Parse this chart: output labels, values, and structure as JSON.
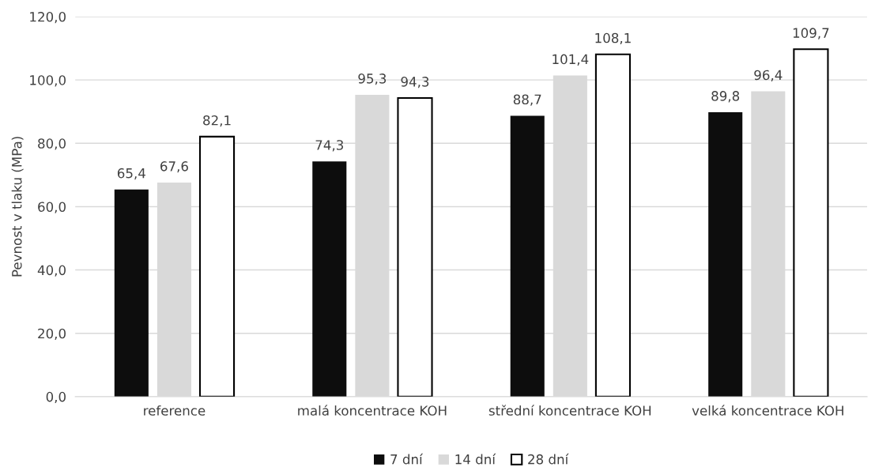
{
  "chart_data": {
    "type": "bar",
    "ylabel": "Pevnost v tlaku (MPa)",
    "categories": [
      "reference",
      "malá koncentrace KOH",
      "střední koncentrace KOH",
      "velká koncentrace KOH"
    ],
    "series": [
      {
        "name": "7 dní",
        "color": "#0d0d0d",
        "values": [
          65.4,
          74.3,
          88.7,
          89.8
        ],
        "value_labels": [
          "65,4",
          "74,3",
          "88,7",
          "89,8"
        ]
      },
      {
        "name": "14 dní",
        "color": "#d9d9d9",
        "values": [
          67.6,
          95.3,
          101.4,
          96.4
        ],
        "value_labels": [
          "67,6",
          "95,3",
          "101,4",
          "96,4"
        ]
      },
      {
        "name": "28 dní",
        "color": "#ffffff",
        "values": [
          82.1,
          94.3,
          108.1,
          109.7
        ],
        "value_labels": [
          "82,1",
          "94,3",
          "108,1",
          "109,7"
        ]
      }
    ],
    "ylim": [
      0,
      120
    ],
    "yticks": [
      {
        "value": 0,
        "label": "0,0"
      },
      {
        "value": 20,
        "label": "20,0"
      },
      {
        "value": 40,
        "label": "40,0"
      },
      {
        "value": 60,
        "label": "60,0"
      },
      {
        "value": 80,
        "label": "80,0"
      },
      {
        "value": 100,
        "label": "100,0"
      },
      {
        "value": 120,
        "label": "120,0"
      }
    ],
    "grid": "y",
    "legend": "bottom"
  }
}
